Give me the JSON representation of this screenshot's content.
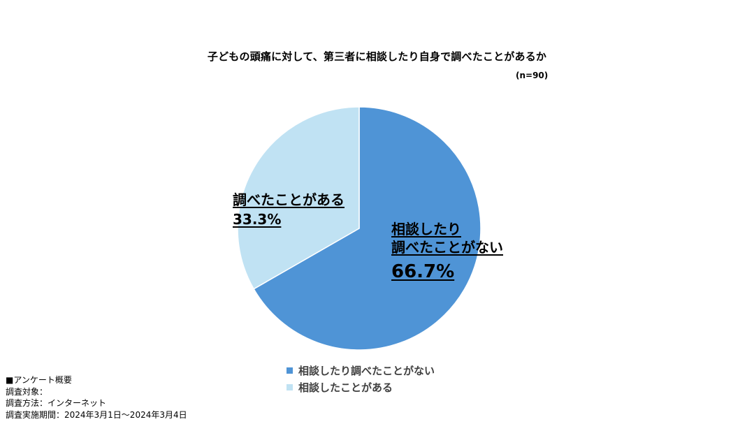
{
  "chart_data": {
    "type": "pie",
    "title": "子どもの頭痛に対して、第三者に相談したり自身で調べたことがあるか",
    "subtitle": "(n=90)",
    "slices": [
      {
        "label_line1": "相談したり",
        "label_line2": "調べたことがない",
        "value": 66.7,
        "value_label": "66.7%",
        "legend": "相談したり調べたことがない",
        "color": "#4f94d6"
      },
      {
        "label_line1": "調べたことがある",
        "value": 33.3,
        "value_label": "33.3%",
        "legend": "相談したことがある",
        "color": "#c0e2f3"
      }
    ],
    "start_angle_deg": 0,
    "direction": "clockwise",
    "legend_position": "bottom"
  },
  "survey": {
    "heading": "■アンケート概要",
    "target": "調査対象：",
    "method": "調査方法：インターネット",
    "period": "調査実施期間：2024年3月1日～2024年3月4日"
  }
}
